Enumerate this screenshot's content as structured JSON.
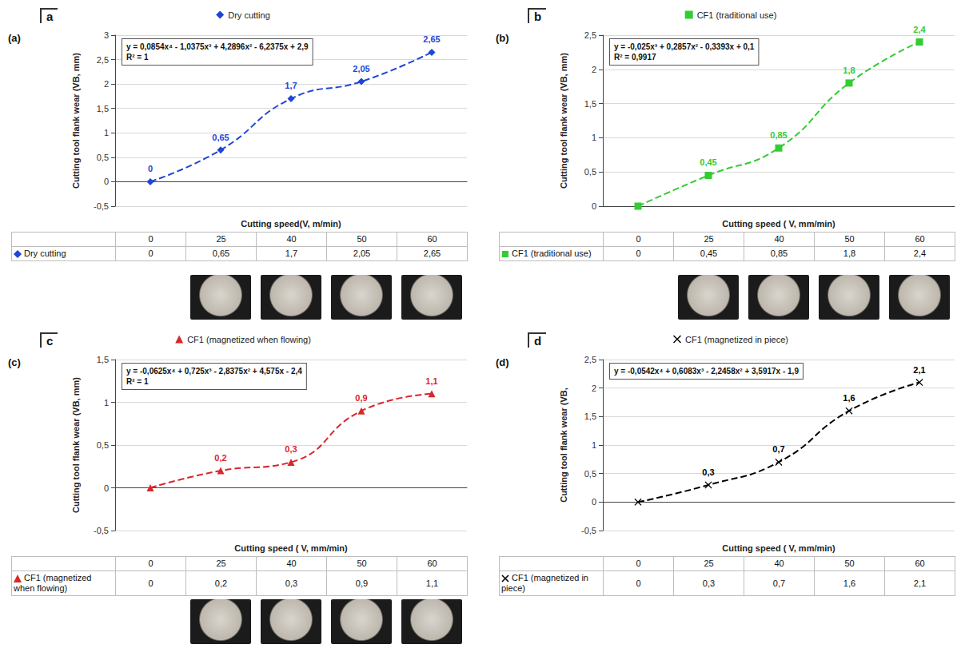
{
  "chart_data": [
    {
      "type": "line",
      "panel_label": "(a)",
      "letter": "a",
      "legend": "top",
      "equation": "y = 0,0854x⁴ - 1,0375x³ + 4,2896x² - 6,2375x + 2,9",
      "r_squared": "R² = 1",
      "xlabel": "Cutting speed(V, m/min)",
      "ylabel": "Cutting tool flank wear (VB, mm)",
      "categories": [
        0,
        25,
        40,
        50,
        60
      ],
      "series": [
        {
          "name": "Dry cutting",
          "color": "#1f45d6",
          "marker": "diamond",
          "line_style": "dashed",
          "values": [
            0,
            0.65,
            1.7,
            2.05,
            2.65
          ],
          "value_labels": [
            "0",
            "0,65",
            "1,7",
            "2,05",
            "2,65"
          ]
        }
      ],
      "ylim": [
        -0.5,
        3
      ],
      "yticks": [
        {
          "value": -0.5,
          "label": "-0,5"
        },
        0,
        {
          "value": 0.5,
          "label": "0,5"
        },
        1,
        {
          "value": 1.5,
          "label": "1,5"
        },
        2,
        {
          "value": 2.5,
          "label": "2,5"
        },
        3
      ],
      "grid": true,
      "data_labels": true,
      "tick_labels": "y"
    },
    {
      "type": "line",
      "panel_label": "(b)",
      "letter": "b",
      "legend": "top",
      "equation": "y = -0,025x³ + 0,2857x² - 0,3393x + 0,1",
      "r_squared": "R² = 0,9917",
      "xlabel": "Cutting speed ( V, mm/min)",
      "ylabel": "Cutting tool flank wear (VB, mm)",
      "categories": [
        0,
        25,
        40,
        50,
        60
      ],
      "series": [
        {
          "name": "CF1 (traditional use)",
          "color": "#33cc33",
          "marker": "rect",
          "line_style": "dashed",
          "values": [
            0,
            0.45,
            0.85,
            1.8,
            2.4
          ],
          "value_labels": [
            null,
            "0,45",
            "0,85",
            "1,8",
            "2,4"
          ]
        }
      ],
      "ylim": [
        0,
        2.5
      ],
      "yticks": [
        0,
        {
          "value": 0.5,
          "label": "0,5"
        },
        1,
        {
          "value": 1.5,
          "label": "1,5"
        },
        2,
        {
          "value": 2.5,
          "label": "2,5"
        }
      ],
      "grid": true,
      "data_labels": true,
      "tick_labels": "y"
    },
    {
      "type": "line",
      "panel_label": "(c)",
      "letter": "c",
      "legend": "top",
      "equation": "y = -0,0625x⁴ + 0,725x³ - 2,8375x² + 4,575x - 2,4",
      "r_squared": "R² = 1",
      "xlabel": "Cutting speed ( V, mm/min)",
      "ylabel": "Cutting tool flank wear (VB, mm)",
      "categories": [
        0,
        25,
        40,
        50,
        60
      ],
      "series": [
        {
          "name": "CF1 (magnetized when flowing)",
          "color": "#d9262b",
          "marker": "triangle",
          "line_style": "dashed",
          "values": [
            0,
            0.2,
            0.3,
            0.9,
            1.1
          ],
          "value_labels": [
            null,
            "0,2",
            "0,3",
            "0,9",
            "1,1"
          ]
        }
      ],
      "ylim": [
        -0.5,
        1.5
      ],
      "yticks": [
        {
          "value": -0.5,
          "label": "-0,5"
        },
        0,
        {
          "value": 0.5,
          "label": "0,5"
        },
        1,
        {
          "value": 1.5,
          "label": "1,5"
        }
      ],
      "grid": true,
      "data_labels": true,
      "tick_labels": "y"
    },
    {
      "type": "line",
      "panel_label": "(d)",
      "letter": "d",
      "legend": "top",
      "equation": "y = -0,0542x⁴ + 0,6083x³ - 2,2458x² + 3,5917x - 1,9",
      "xlabel": "Cutting speed ( V, mm/min)",
      "ylabel": "Cutting tool flank wear (VB,",
      "categories": [
        0,
        25,
        40,
        50,
        60
      ],
      "series": [
        {
          "name": "CF1 (magnetized in piece)",
          "color": "#000000",
          "marker": "x",
          "line_style": "dashed",
          "values": [
            0,
            0.3,
            0.7,
            1.6,
            2.1
          ],
          "value_labels": [
            null,
            "0,3",
            "0,7",
            "1,6",
            "2,1"
          ]
        }
      ],
      "ylim": [
        -0.5,
        2.5
      ],
      "yticks": [
        {
          "value": -0.5,
          "label": "-0,5"
        },
        0,
        {
          "value": 0.5,
          "label": "0,5"
        },
        1,
        {
          "value": 1.5,
          "label": "1,5"
        },
        2,
        {
          "value": 2.5,
          "label": "2,5"
        }
      ],
      "grid": true,
      "data_labels": true,
      "tick_labels": "y"
    }
  ]
}
